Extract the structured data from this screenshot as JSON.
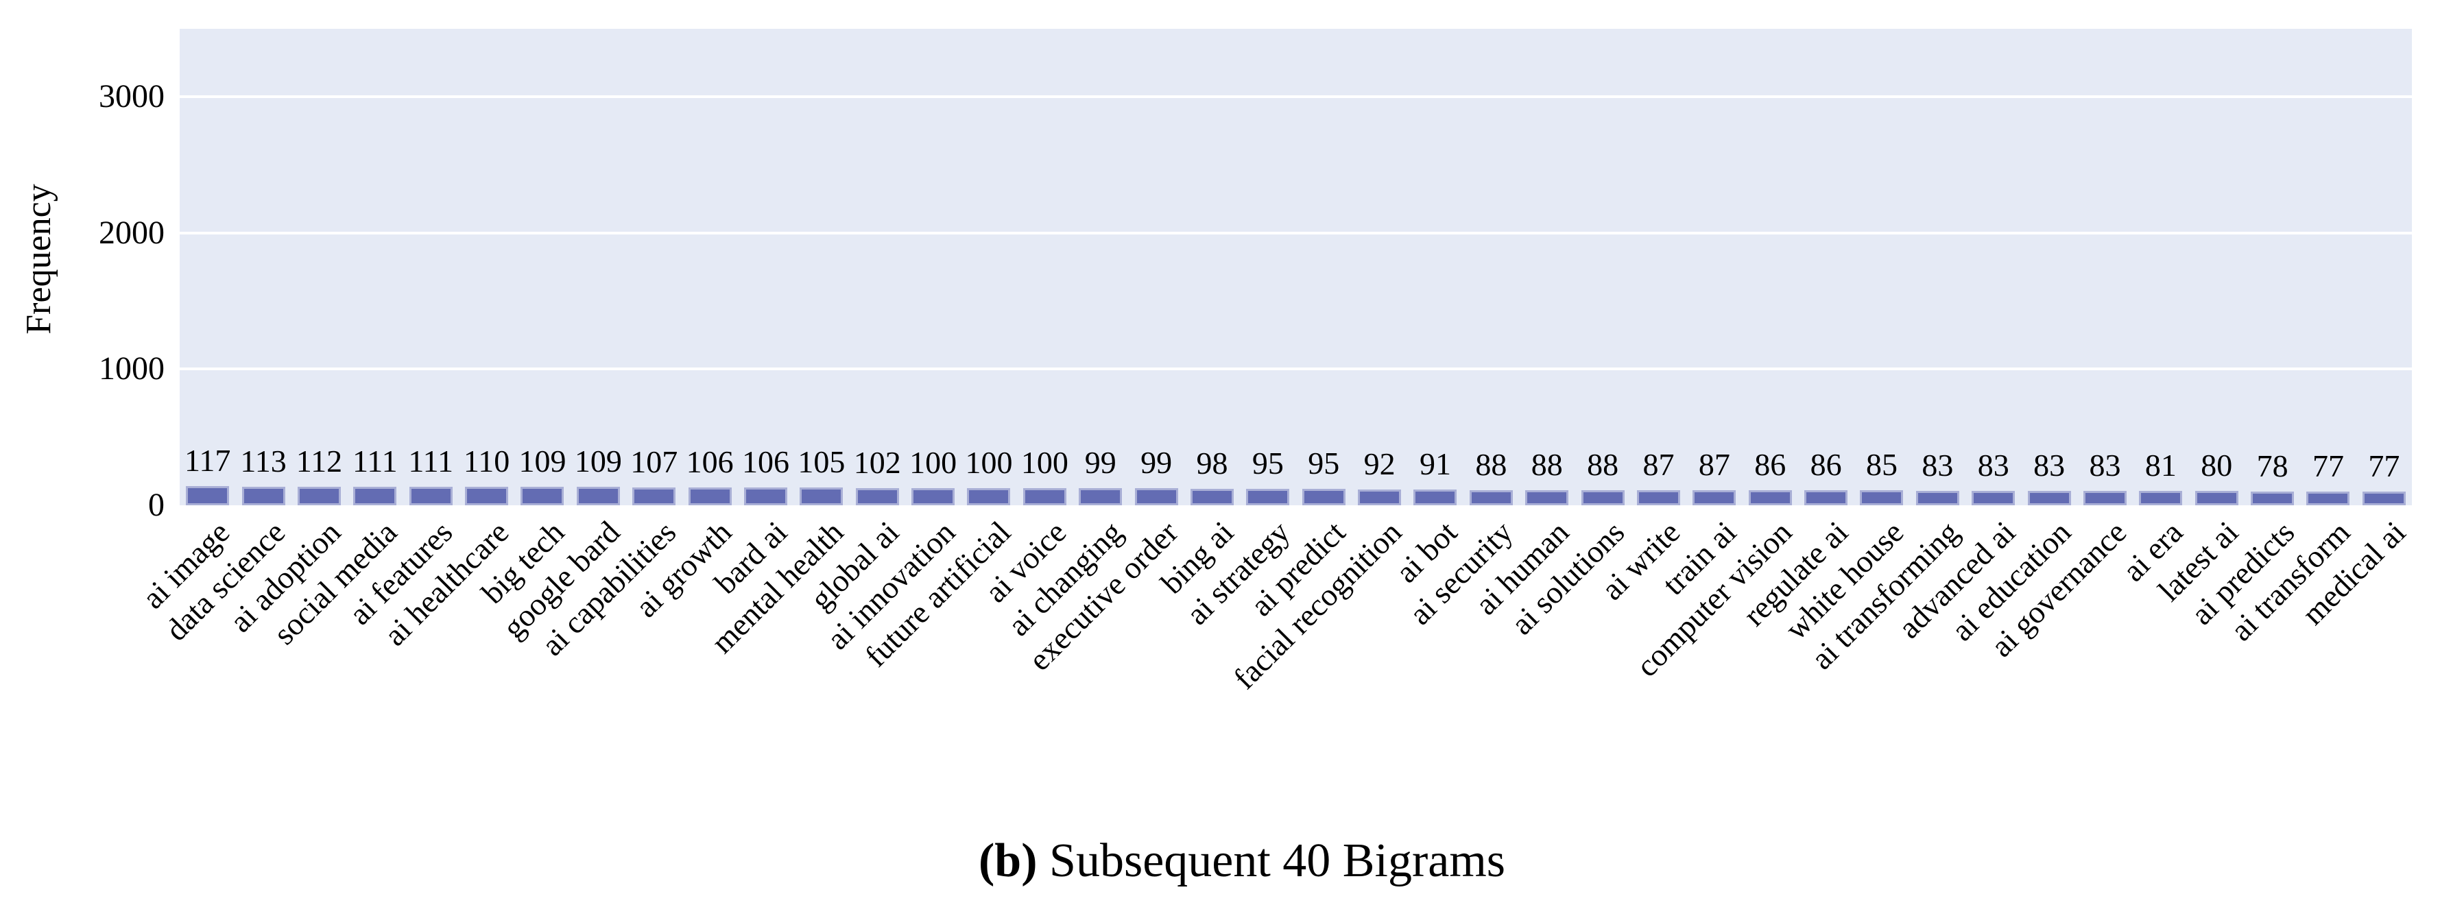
{
  "figure": {
    "caption_label": "(b)",
    "caption_text": " Subsequent 40 Bigrams"
  },
  "chart_data": {
    "type": "bar",
    "title": "",
    "xlabel": "",
    "ylabel": "Frequency",
    "ylim": [
      0,
      3500
    ],
    "yticks": [
      0,
      1000,
      2000,
      3000
    ],
    "grid": true,
    "legend": false,
    "bar_values_shown": true,
    "categories": [
      "ai image",
      "data science",
      "ai adoption",
      "social media",
      "ai features",
      "ai healthcare",
      "big tech",
      "google bard",
      "ai capabilities",
      "ai growth",
      "bard ai",
      "mental health",
      "global ai",
      "ai innovation",
      "future artificial",
      "ai voice",
      "ai changing",
      "executive order",
      "bing ai",
      "ai strategy",
      "ai predict",
      "facial recognition",
      "ai bot",
      "ai security",
      "ai human",
      "ai solutions",
      "ai write",
      "train ai",
      "computer vision",
      "regulate ai",
      "white house",
      "ai transforming",
      "advanced ai",
      "ai education",
      "ai governance",
      "ai era",
      "latest ai",
      "ai predicts",
      "ai transform",
      "medical ai"
    ],
    "values": [
      117,
      113,
      112,
      111,
      111,
      110,
      109,
      109,
      107,
      106,
      106,
      105,
      102,
      100,
      100,
      100,
      99,
      99,
      98,
      95,
      95,
      92,
      91,
      88,
      88,
      88,
      87,
      87,
      86,
      86,
      85,
      83,
      83,
      83,
      83,
      81,
      80,
      78,
      77,
      77
    ],
    "style": {
      "plot_background": "#e5eaf5",
      "gridline_color": "#ffffff",
      "bar_fill": "#636cb3",
      "bar_edge": "#a9afd6",
      "text_color": "#000000"
    }
  }
}
